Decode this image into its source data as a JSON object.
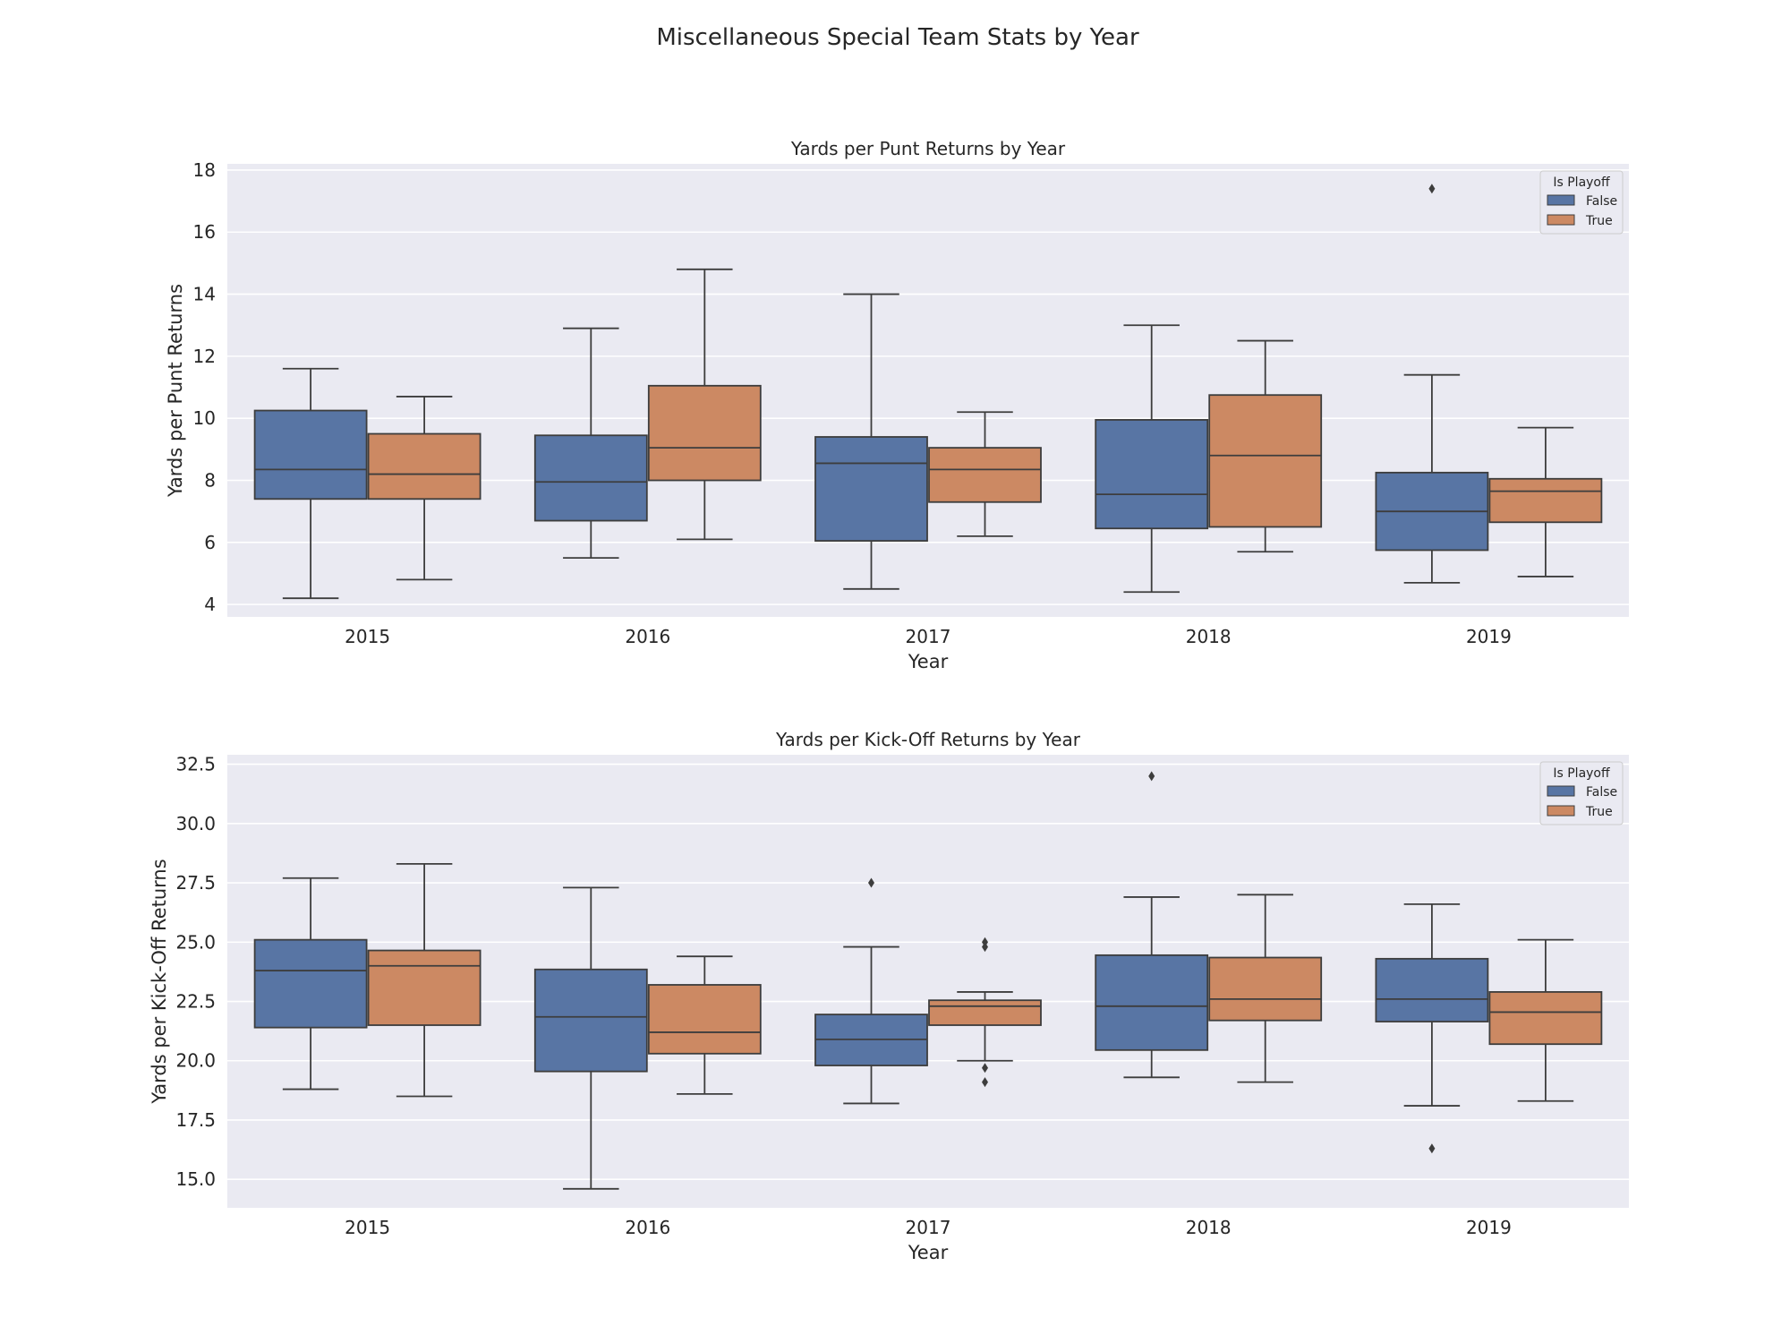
{
  "figure": {
    "title": "Miscellaneous Special Team Stats by Year"
  },
  "chart_data": [
    {
      "type": "box",
      "title": "Yards per Punt Returns by Year",
      "xlabel": "Year",
      "ylabel": "Yards per Punt Returns",
      "categories": [
        "2015",
        "2016",
        "2017",
        "2018",
        "2019"
      ],
      "ylim": [
        3.6,
        18.2
      ],
      "yticks": [
        4,
        6,
        8,
        10,
        12,
        14,
        16,
        18
      ],
      "ytick_labels": [
        "4",
        "6",
        "8",
        "10",
        "12",
        "14",
        "16",
        "18"
      ],
      "grid": true,
      "legend": {
        "title": "Is Playoff",
        "position": "top-right"
      },
      "series": [
        {
          "name": "False",
          "color": "#5875a4",
          "boxes": [
            {
              "min": 4.2,
              "q1": 7.4,
              "median": 8.35,
              "q3": 10.25,
              "max": 11.6,
              "outliers": []
            },
            {
              "min": 5.5,
              "q1": 6.7,
              "median": 7.95,
              "q3": 9.45,
              "max": 12.9,
              "outliers": []
            },
            {
              "min": 4.5,
              "q1": 6.05,
              "median": 8.55,
              "q3": 9.4,
              "max": 14.0,
              "outliers": []
            },
            {
              "min": 4.4,
              "q1": 6.45,
              "median": 7.55,
              "q3": 9.95,
              "max": 13.0,
              "outliers": []
            },
            {
              "min": 4.7,
              "q1": 5.75,
              "median": 7.0,
              "q3": 8.25,
              "max": 11.4,
              "outliers": [
                17.4
              ]
            }
          ]
        },
        {
          "name": "True",
          "color": "#cc8963",
          "boxes": [
            {
              "min": 4.8,
              "q1": 7.4,
              "median": 8.2,
              "q3": 9.5,
              "max": 10.7,
              "outliers": []
            },
            {
              "min": 6.1,
              "q1": 8.0,
              "median": 9.05,
              "q3": 11.05,
              "max": 14.8,
              "outliers": []
            },
            {
              "min": 6.2,
              "q1": 7.3,
              "median": 8.35,
              "q3": 9.05,
              "max": 10.2,
              "outliers": []
            },
            {
              "min": 5.7,
              "q1": 6.5,
              "median": 8.8,
              "q3": 10.75,
              "max": 12.5,
              "outliers": []
            },
            {
              "min": 4.9,
              "q1": 6.65,
              "median": 7.65,
              "q3": 8.05,
              "max": 9.7,
              "outliers": []
            }
          ]
        }
      ]
    },
    {
      "type": "box",
      "title": "Yards per Kick-Off Returns by Year",
      "xlabel": "Year",
      "ylabel": "Yards per Kick-Off Returns",
      "categories": [
        "2015",
        "2016",
        "2017",
        "2018",
        "2019"
      ],
      "ylim": [
        13.8,
        32.9
      ],
      "yticks": [
        15.0,
        17.5,
        20.0,
        22.5,
        25.0,
        27.5,
        30.0,
        32.5
      ],
      "ytick_labels": [
        "15.0",
        "17.5",
        "20.0",
        "22.5",
        "25.0",
        "27.5",
        "30.0",
        "32.5"
      ],
      "grid": true,
      "legend": {
        "title": "Is Playoff",
        "position": "top-right"
      },
      "series": [
        {
          "name": "False",
          "color": "#5875a4",
          "boxes": [
            {
              "min": 18.8,
              "q1": 21.4,
              "median": 23.8,
              "q3": 25.1,
              "max": 27.7,
              "outliers": []
            },
            {
              "min": 14.6,
              "q1": 19.55,
              "median": 21.85,
              "q3": 23.85,
              "max": 27.3,
              "outliers": []
            },
            {
              "min": 18.2,
              "q1": 19.8,
              "median": 20.9,
              "q3": 21.95,
              "max": 24.8,
              "outliers": [
                27.5
              ]
            },
            {
              "min": 19.3,
              "q1": 20.45,
              "median": 22.3,
              "q3": 24.45,
              "max": 26.9,
              "outliers": [
                32.0
              ]
            },
            {
              "min": 18.1,
              "q1": 21.65,
              "median": 22.6,
              "q3": 24.3,
              "max": 26.6,
              "outliers": [
                16.3
              ]
            }
          ]
        },
        {
          "name": "True",
          "color": "#cc8963",
          "boxes": [
            {
              "min": 18.5,
              "q1": 21.5,
              "median": 24.0,
              "q3": 24.65,
              "max": 28.3,
              "outliers": []
            },
            {
              "min": 18.6,
              "q1": 20.3,
              "median": 21.2,
              "q3": 23.2,
              "max": 24.4,
              "outliers": []
            },
            {
              "min": 20.0,
              "q1": 21.5,
              "median": 22.3,
              "q3": 22.55,
              "max": 22.9,
              "outliers": [
                25.0,
                24.8,
                19.7,
                19.1
              ]
            },
            {
              "min": 19.1,
              "q1": 21.7,
              "median": 22.6,
              "q3": 24.35,
              "max": 27.0,
              "outliers": []
            },
            {
              "min": 18.3,
              "q1": 20.7,
              "median": 22.05,
              "q3": 22.9,
              "max": 25.1,
              "outliers": []
            }
          ]
        }
      ]
    }
  ]
}
